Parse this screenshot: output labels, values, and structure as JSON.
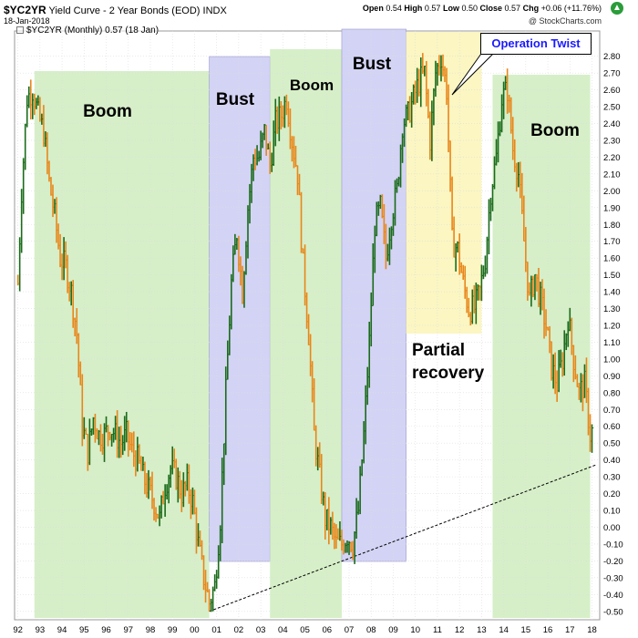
{
  "header": {
    "symbol": "$YC2YR",
    "description": "Yield Curve - 2 Year Bonds (EOD)",
    "exchange": "INDX",
    "date": "18-Jan-2018",
    "open_label": "Open",
    "open": "0.54",
    "high_label": "High",
    "high": "0.57",
    "low_label": "Low",
    "low": "0.50",
    "close_label": "Close",
    "close": "0.57",
    "chg_label": "Chg",
    "chg": "+0.06 (+11.76%)",
    "chg_arrow": "▲",
    "brand": "@ StockCharts.com",
    "gear_icon": "gear-icon"
  },
  "legend": {
    "text": "$YC2YR (Monthly) 0.57 (18 Jan)"
  },
  "callout": {
    "text": "Operation Twist"
  },
  "chart_data": {
    "type": "bar",
    "title": "Yield Curve - 2 Year Bonds (EOD)",
    "xlabel": "",
    "ylabel": "",
    "ylim": [
      -0.5,
      2.95
    ],
    "x_ticks": [
      "92",
      "93",
      "94",
      "95",
      "96",
      "97",
      "98",
      "99",
      "00",
      "01",
      "02",
      "03",
      "04",
      "05",
      "06",
      "07",
      "08",
      "09",
      "10",
      "11",
      "12",
      "13",
      "14",
      "15",
      "16",
      "17",
      "18"
    ],
    "y_ticks": [
      -0.5,
      -0.4,
      -0.3,
      -0.2,
      -0.1,
      0.0,
      0.1,
      0.2,
      0.3,
      0.4,
      0.5,
      0.6,
      0.7,
      0.8,
      0.9,
      1.0,
      1.1,
      1.2,
      1.3,
      1.4,
      1.5,
      1.6,
      1.7,
      1.8,
      1.9,
      2.0,
      2.1,
      2.2,
      2.3,
      2.4,
      2.5,
      2.6,
      2.7,
      2.8
    ],
    "y_tick_labels": [
      "-0.50",
      "-0.40",
      "-0.30",
      "-0.20",
      "-0.10",
      "0.00",
      "0.10",
      "0.20",
      "0.30",
      "0.40",
      "0.50",
      "0.60",
      "0.70",
      "0.80",
      "0.90",
      "1.00",
      "1.10",
      "1.20",
      "1.30",
      "1.40",
      "1.50",
      "1.60",
      "1.70",
      "1.80",
      "1.90",
      "2.00",
      "2.10",
      "2.20",
      "2.30",
      "2.40",
      "2.50",
      "2.60",
      "2.70",
      "2.80"
    ],
    "grid": true,
    "colors": {
      "up": "#1a6b1a",
      "down": "#e8861a",
      "boom": "#d6efc8",
      "bust": "#d3d3f5",
      "partial": "#fbf6c2",
      "trendline": "#000000"
    },
    "series": [
      {
        "points": [
          [
            "1992-01",
            1.45
          ],
          [
            "1992-03",
            2.0
          ],
          [
            "1992-06",
            2.55
          ],
          [
            "1992-09",
            2.6
          ],
          [
            "1992-12",
            2.45
          ],
          [
            "1993-03",
            2.35
          ],
          [
            "1993-06",
            2.05
          ],
          [
            "1993-09",
            1.85
          ],
          [
            "1993-12",
            1.6
          ],
          [
            "1994-03",
            1.55
          ],
          [
            "1994-06",
            1.4
          ],
          [
            "1994-09",
            1.15
          ],
          [
            "1994-12",
            0.6
          ],
          [
            "1995-03",
            0.45
          ],
          [
            "1995-06",
            0.65
          ],
          [
            "1995-09",
            0.55
          ],
          [
            "1995-12",
            0.55
          ],
          [
            "1996-03",
            0.6
          ],
          [
            "1996-06",
            0.55
          ],
          [
            "1996-09",
            0.5
          ],
          [
            "1996-12",
            0.55
          ],
          [
            "1997-03",
            0.45
          ],
          [
            "1997-06",
            0.4
          ],
          [
            "1997-09",
            0.3
          ],
          [
            "1997-12",
            0.22
          ],
          [
            "1998-03",
            0.15
          ],
          [
            "1998-06",
            0.05
          ],
          [
            "1998-09",
            0.25
          ],
          [
            "1998-12",
            0.35
          ],
          [
            "1999-03",
            0.3
          ],
          [
            "1999-06",
            0.2
          ],
          [
            "1999-09",
            0.25
          ],
          [
            "1999-12",
            0.15
          ],
          [
            "2000-03",
            -0.1
          ],
          [
            "2000-06",
            -0.3
          ],
          [
            "2000-09",
            -0.45
          ],
          [
            "2000-12",
            -0.35
          ],
          [
            "2001-03",
            0.05
          ],
          [
            "2001-06",
            0.8
          ],
          [
            "2001-09",
            1.45
          ],
          [
            "2001-12",
            1.75
          ],
          [
            "2002-03",
            1.4
          ],
          [
            "2002-06",
            1.9
          ],
          [
            "2002-09",
            2.2
          ],
          [
            "2002-12",
            2.2
          ],
          [
            "2003-03",
            2.35
          ],
          [
            "2003-06",
            2.15
          ],
          [
            "2003-09",
            2.4
          ],
          [
            "2003-12",
            2.45
          ],
          [
            "2004-03",
            2.55
          ],
          [
            "2004-06",
            2.3
          ],
          [
            "2004-09",
            2.1
          ],
          [
            "2004-12",
            1.55
          ],
          [
            "2005-03",
            1.15
          ],
          [
            "2005-06",
            0.55
          ],
          [
            "2005-09",
            0.3
          ],
          [
            "2005-12",
            0.05
          ],
          [
            "2006-03",
            0.0
          ],
          [
            "2006-06",
            -0.1
          ],
          [
            "2006-09",
            -0.1
          ],
          [
            "2006-12",
            -0.05
          ],
          [
            "2007-03",
            -0.1
          ],
          [
            "2007-06",
            0.1
          ],
          [
            "2007-09",
            0.55
          ],
          [
            "2007-12",
            1.1
          ],
          [
            "2008-03",
            1.8
          ],
          [
            "2008-06",
            1.9
          ],
          [
            "2008-09",
            1.6
          ],
          [
            "2008-12",
            1.85
          ],
          [
            "2009-03",
            2.0
          ],
          [
            "2009-06",
            2.4
          ],
          [
            "2009-09",
            2.45
          ],
          [
            "2009-12",
            2.55
          ],
          [
            "2010-03",
            2.65
          ],
          [
            "2010-06",
            2.7
          ],
          [
            "2010-09",
            2.3
          ],
          [
            "2010-12",
            2.7
          ],
          [
            "2011-03",
            2.8
          ],
          [
            "2011-06",
            2.6
          ],
          [
            "2011-09",
            1.7
          ],
          [
            "2011-12",
            1.65
          ],
          [
            "2012-03",
            1.45
          ],
          [
            "2012-06",
            1.3
          ],
          [
            "2012-09",
            1.3
          ],
          [
            "2012-12",
            1.4
          ],
          [
            "2013-03",
            1.6
          ],
          [
            "2013-06",
            2.0
          ],
          [
            "2013-09",
            2.2
          ],
          [
            "2013-12",
            2.55
          ],
          [
            "2014-03",
            2.6
          ],
          [
            "2014-06",
            2.25
          ],
          [
            "2014-09",
            2.1
          ],
          [
            "2014-12",
            1.7
          ],
          [
            "2015-03",
            1.35
          ],
          [
            "2015-06",
            1.5
          ],
          [
            "2015-09",
            1.35
          ],
          [
            "2015-12",
            1.2
          ],
          [
            "2016-03",
            0.95
          ],
          [
            "2016-06",
            0.85
          ],
          [
            "2016-09",
            1.0
          ],
          [
            "2016-12",
            1.25
          ],
          [
            "2017-03",
            1.0
          ],
          [
            "2017-06",
            0.8
          ],
          [
            "2017-09",
            0.85
          ],
          [
            "2017-12",
            0.55
          ],
          [
            "2018-01",
            0.57
          ]
        ]
      }
    ],
    "regions": [
      {
        "label": "Boom",
        "from": "1992-10",
        "to": "2000-09",
        "color": "boom"
      },
      {
        "label": "Bust",
        "from": "2000-09",
        "to": "2003-06",
        "color": "bust"
      },
      {
        "label": "Boom",
        "from": "2003-06",
        "to": "2006-09",
        "color": "boom"
      },
      {
        "label": "Bust",
        "from": "2006-09",
        "to": "2009-08",
        "color": "bust"
      },
      {
        "label": "",
        "from": "2009-08",
        "to": "2013-01",
        "color": "partial"
      },
      {
        "label": "Boom",
        "from": "2013-07",
        "to": "2017-12",
        "color": "boom"
      }
    ],
    "annotations": [
      {
        "text": "Partial",
        "x": "2011-04"
      },
      {
        "text": "recovery",
        "x": "2011-07"
      },
      {
        "text": "Operation Twist",
        "x": "2011-10",
        "y": 2.45
      }
    ],
    "trendline": {
      "from": [
        "2000-09",
        -0.5
      ],
      "to": [
        "2018-03",
        0.37
      ]
    }
  }
}
